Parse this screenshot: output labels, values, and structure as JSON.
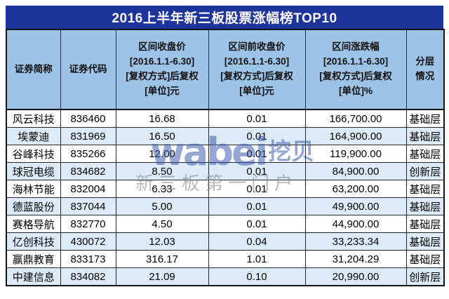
{
  "colors": {
    "title_bar_bg": "#1e339b",
    "title_text": "#ffffff",
    "header_bg": "#9dc3e6",
    "row_alt_bg": "#dcebf7",
    "row_bg": "#ffffff",
    "border_dark": "#141414",
    "watermark_blue": "#3456a8",
    "watermark_gray": "#808080"
  },
  "watermark": {
    "logo_latin": "wabei",
    "logo_cn": "挖贝",
    "tagline": "新三板第一门户"
  },
  "chart_data": {
    "type": "table",
    "title": "2016上半年新三板股票涨幅榜TOP10",
    "columns": [
      "证券简称",
      "证券代码",
      "区间收盘价\n[2016.1.1-6.30]\n[复权方式]后复权\n[单位]元",
      "区间前收盘价\n[2016.1.1-6.30]\n[复权方式]后复权\n[单位]元",
      "区间涨跌幅\n[2016.1.1-6.30]\n[复权方式]后复权\n[单位]%",
      "分层\n情况"
    ],
    "rows": [
      {
        "name": "风云科技",
        "code": "836460",
        "close": "16.68",
        "prev_close": "0.01",
        "change_pct": "166,700.00",
        "layer": "基础层"
      },
      {
        "name": "埃蒙迪",
        "code": "831969",
        "close": "16.50",
        "prev_close": "0.01",
        "change_pct": "164,900.00",
        "layer": "基础层"
      },
      {
        "name": "谷峰科技",
        "code": "835266",
        "close": "12.00",
        "prev_close": "0.01",
        "change_pct": "119,900.00",
        "layer": "基础层"
      },
      {
        "name": "球冠电缆",
        "code": "834682",
        "close": "8.50",
        "prev_close": "0.01",
        "change_pct": "84,900.00",
        "layer": "创新层"
      },
      {
        "name": "海林节能",
        "code": "832004",
        "close": "6.33",
        "prev_close": "0.01",
        "change_pct": "63,200.00",
        "layer": "基础层"
      },
      {
        "name": "德蓝股份",
        "code": "837044",
        "close": "5.00",
        "prev_close": "0.01",
        "change_pct": "49,900.00",
        "layer": "基础层"
      },
      {
        "name": "赛格导航",
        "code": "832770",
        "close": "4.50",
        "prev_close": "0.01",
        "change_pct": "44,900.00",
        "layer": "基础层"
      },
      {
        "name": "亿创科技",
        "code": "430072",
        "close": "12.03",
        "prev_close": "0.04",
        "change_pct": "33,233.34",
        "layer": "基础层"
      },
      {
        "name": "赢鼎教育",
        "code": "833173",
        "close": "316.17",
        "prev_close": "1.01",
        "change_pct": "31,204.29",
        "layer": "基础层"
      },
      {
        "name": "中建信息",
        "code": "834082",
        "close": "21.09",
        "prev_close": "0.10",
        "change_pct": "20,990.00",
        "layer": "创新层"
      }
    ]
  }
}
